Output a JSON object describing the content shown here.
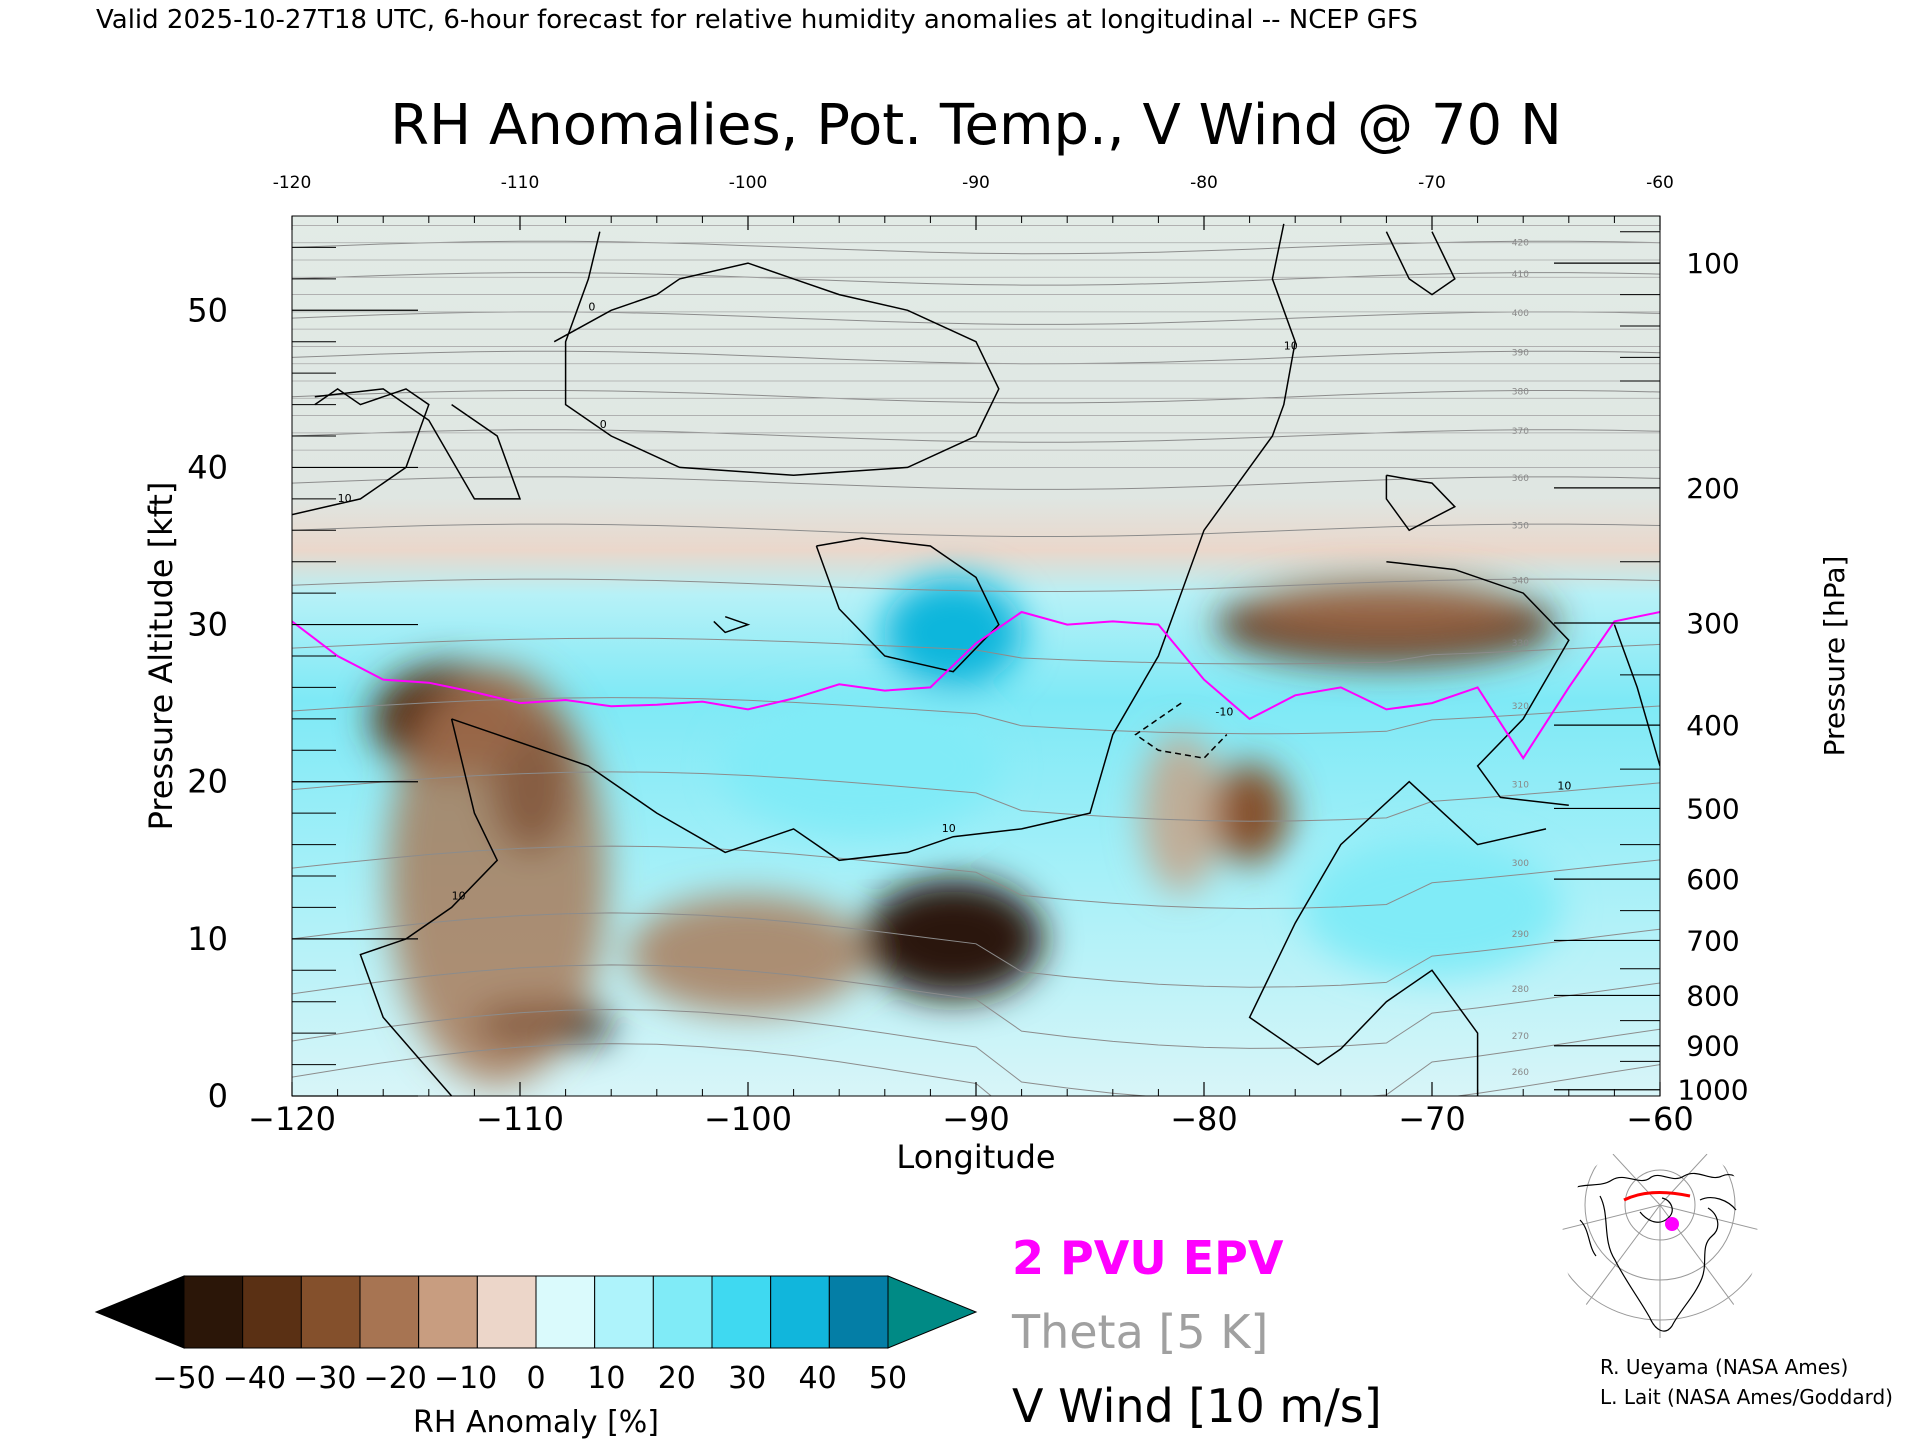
{
  "header": {
    "valid_line": "Valid 2025-10-27T18 UTC, 6-hour forecast for relative humidity anomalies at longitudinal -- NCEP GFS"
  },
  "chart_data": {
    "type": "heatmap",
    "title": "RH Anomalies, Pot. Temp., V Wind @ 70 N",
    "xlabel": "Longitude",
    "ylabel": "Pressure Altitude [kft]",
    "y2label": "Pressure [hPa]",
    "xlim": [
      -120,
      -60
    ],
    "ylim": [
      0,
      56
    ],
    "x_ticks": [
      "−120",
      "−110",
      "−100",
      "−90",
      "−80",
      "−70",
      "−60"
    ],
    "x_ticks_top": [
      "-120",
      "-110",
      "-100",
      "-90",
      "-80",
      "-70",
      "-60"
    ],
    "x_tick_values": [
      -120,
      -110,
      -100,
      -90,
      -80,
      -70,
      -60
    ],
    "y_ticks": [
      "0",
      "10",
      "20",
      "30",
      "40",
      "50"
    ],
    "y_tick_values": [
      0,
      10,
      20,
      30,
      40,
      50
    ],
    "pressure_ticks": [
      {
        "label": "100",
        "kft": 53.0
      },
      {
        "label": "200",
        "kft": 38.7
      },
      {
        "label": "300",
        "kft": 30.1
      },
      {
        "label": "400",
        "kft": 23.6
      },
      {
        "label": "500",
        "kft": 18.3
      },
      {
        "label": "600",
        "kft": 13.8
      },
      {
        "label": "700",
        "kft": 9.9
      },
      {
        "label": "800",
        "kft": 6.4
      },
      {
        "label": "900",
        "kft": 3.2
      },
      {
        "label": "1000",
        "kft": 0.4
      }
    ],
    "colorbar": {
      "label": "RH Anomaly [%]",
      "tick_labels": [
        "−50",
        "−40",
        "−30",
        "−20",
        "−10",
        "0",
        "10",
        "20",
        "30",
        "40",
        "50"
      ],
      "colors": [
        "#2b1608",
        "#5a3014",
        "#84502c",
        "#a77452",
        "#c89d80",
        "#ecd6c9",
        "#dafafc",
        "#aef3fb",
        "#80ebf7",
        "#3fd9f1",
        "#11b6dc",
        "#047ea6"
      ],
      "under_color": "#000000",
      "over_color": "#008a85"
    },
    "legend": [
      {
        "label": "2 PVU EPV",
        "color": "#ff00ff"
      },
      {
        "label": "Theta [5 K]",
        "color": "#a0a0a0"
      },
      {
        "label": "V Wind [10 m/s]",
        "color": "#000000"
      }
    ],
    "theta_labels": [
      "260",
      "270",
      "280",
      "290",
      "300",
      "310",
      "320",
      "330",
      "340",
      "350",
      "360",
      "370",
      "380",
      "390",
      "400",
      "410",
      "420"
    ],
    "pvu_line": {
      "x": [
        -120,
        -118,
        -116,
        -114,
        -112,
        -110,
        -108,
        -106,
        -104,
        -102,
        -100,
        -98,
        -96,
        -94,
        -92,
        -90,
        -88,
        -86,
        -84,
        -82,
        -80,
        -78,
        -76,
        -74,
        -72,
        -70,
        -68,
        -66,
        -64,
        -62,
        -60
      ],
      "kft": [
        30.2,
        28.0,
        26.5,
        26.3,
        25.7,
        25.0,
        25.2,
        24.8,
        24.9,
        25.1,
        24.6,
        25.3,
        26.2,
        25.8,
        26.0,
        28.8,
        30.8,
        30.0,
        30.2,
        30.0,
        26.5,
        24.0,
        25.5,
        26.0,
        24.6,
        25.0,
        26.0,
        21.5,
        26.0,
        30.2,
        30.8
      ]
    },
    "wind_contour_labels": [
      "10",
      "0",
      "-10"
    ],
    "rh_field_blobs": [
      {
        "lon": -109.5,
        "kft": 20.0,
        "rh": -55
      },
      {
        "lon": -109.0,
        "kft": 4.5,
        "rh": -55
      },
      {
        "lon": -113.0,
        "kft": 24.0,
        "rh": -35
      },
      {
        "lon": -91.0,
        "kft": 10.0,
        "rh": -45
      },
      {
        "lon": -78.0,
        "kft": 18.0,
        "rh": -32
      },
      {
        "lon": -72.0,
        "kft": 30.0,
        "rh": -35
      },
      {
        "lon": -91.0,
        "kft": 29.5,
        "rh": 35
      },
      {
        "lon": -95.0,
        "kft": 21.0,
        "rh": 22
      },
      {
        "lon": -70.0,
        "kft": 12.0,
        "rh": 22
      }
    ]
  },
  "inset_map": {
    "marker_color": "#ff00ff",
    "line_color": "#ff0000"
  },
  "credits": [
    "R. Ueyama (NASA Ames)",
    "L. Lait (NASA Ames/Goddard)"
  ]
}
